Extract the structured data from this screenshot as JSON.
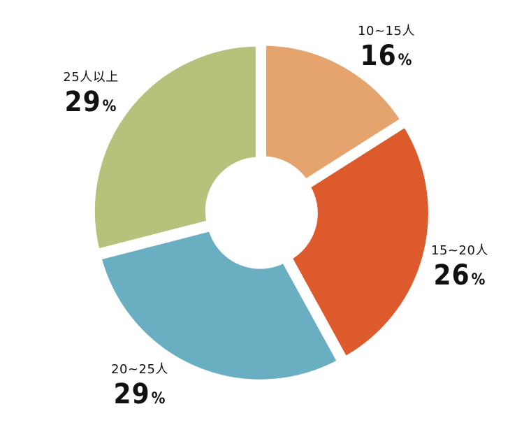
{
  "chart_data": {
    "type": "pie",
    "donut": true,
    "title": "",
    "unit": "%",
    "categories": [
      "10~15人",
      "15~20人",
      "20~25人",
      "25人以上"
    ],
    "values": [
      16,
      26,
      29,
      29
    ],
    "colors": [
      "#E5A36E",
      "#DC5A2B",
      "#6AAEC2",
      "#B6C27C"
    ],
    "value_labels": [
      "16",
      "26",
      "29",
      "29"
    ]
  }
}
